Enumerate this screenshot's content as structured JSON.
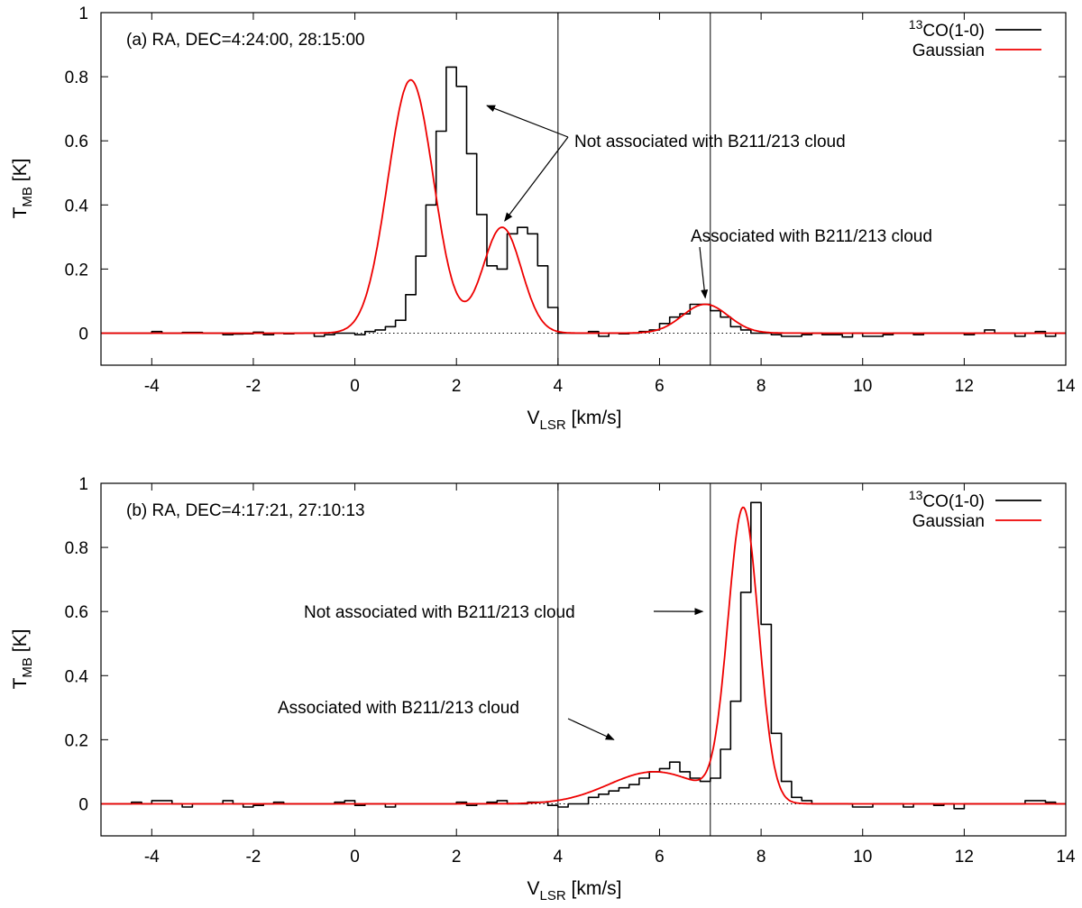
{
  "chart_data": [
    {
      "type": "line",
      "panel_label": "(a) RA, DEC=4:24:00, 28:15:00",
      "xlabel": {
        "main": "V",
        "sub": "LSR",
        "unit": "[km/s]"
      },
      "ylabel": {
        "main": "T",
        "sub": "MB",
        "unit": "[K]"
      },
      "xlim": [
        -5,
        14
      ],
      "ylim": [
        -0.1,
        1.0
      ],
      "xticks": [
        -4,
        -2,
        0,
        2,
        4,
        6,
        8,
        10,
        12,
        14
      ],
      "yticks": [
        0,
        0.2,
        0.4,
        0.6,
        0.8,
        1
      ],
      "vlines": [
        4,
        7
      ],
      "zero_line": "dotted",
      "legend": {
        "position": "top-right",
        "entries": [
          {
            "sup": "13",
            "label": "CO(1-0)",
            "color": "#000000"
          },
          {
            "label": "Gaussian",
            "color": "#ee0000"
          }
        ]
      },
      "series": [
        {
          "name": "13CO(1-0)",
          "style": "step",
          "color": "#000000",
          "bin_width": 0.2,
          "x_start": -5.0,
          "values": [
            0.0,
            0.0,
            0.0,
            0.0,
            0.0,
            0.005,
            0.0,
            0.0,
            0.002,
            0.002,
            0.0,
            0.0,
            -0.005,
            -0.003,
            -0.002,
            0.003,
            -0.005,
            0.0,
            -0.002,
            0.0,
            0.0,
            -0.01,
            -0.005,
            0.0,
            0.0,
            -0.005,
            0.005,
            0.01,
            0.02,
            0.04,
            0.12,
            0.24,
            0.4,
            0.63,
            0.83,
            0.77,
            0.56,
            0.37,
            0.21,
            0.2,
            0.31,
            0.33,
            0.31,
            0.21,
            0.08,
            0.0,
            0.0,
            0.0,
            0.005,
            -0.01,
            0.0,
            -0.002,
            0.0,
            0.005,
            0.01,
            0.03,
            0.05,
            0.06,
            0.09,
            0.09,
            0.07,
            0.05,
            0.02,
            0.01,
            0.0,
            0.0,
            -0.005,
            -0.01,
            -0.01,
            -0.005,
            0.0,
            -0.005,
            -0.005,
            -0.012,
            0.0,
            -0.01,
            -0.01,
            -0.005,
            0.0,
            0.0,
            -0.005,
            0.0,
            0.0,
            0.0,
            0.0,
            -0.005,
            0.0,
            0.01,
            0.0,
            0.0,
            -0.01,
            0.0,
            0.005,
            -0.01,
            0.0
          ]
        },
        {
          "name": "Gaussian",
          "style": "gaussian_sum",
          "color": "#ee0000",
          "components": [
            {
              "amp": 0.79,
              "center": 1.1,
              "sigma": 0.45
            },
            {
              "amp": 0.33,
              "center": 2.9,
              "sigma": 0.38
            },
            {
              "amp": 0.09,
              "center": 6.9,
              "sigma": 0.45
            }
          ]
        }
      ],
      "annotations": [
        {
          "text": "Not associated with B211/213 cloud",
          "x": 0.25,
          "y": 0.6,
          "arrow_to": [
            [
              2.6,
              0.71
            ],
            [
              2.95,
              0.35
            ]
          ]
        },
        {
          "text": "Associated with B211/213 cloud",
          "x": 6.5,
          "y": 0.3,
          "arrow_to": [
            [
              6.9,
              0.11
            ]
          ]
        }
      ]
    },
    {
      "type": "line",
      "panel_label": "(b) RA, DEC=4:17:21, 27:10:13",
      "xlabel": {
        "main": "V",
        "sub": "LSR",
        "unit": "[km/s]"
      },
      "ylabel": {
        "main": "T",
        "sub": "MB",
        "unit": "[K]"
      },
      "xlim": [
        -5,
        14
      ],
      "ylim": [
        -0.1,
        1.0
      ],
      "xticks": [
        -4,
        -2,
        0,
        2,
        4,
        6,
        8,
        10,
        12,
        14
      ],
      "yticks": [
        0,
        0.2,
        0.4,
        0.6,
        0.8,
        1
      ],
      "vlines": [
        4,
        7
      ],
      "zero_line": "dotted",
      "legend": {
        "position": "top-right",
        "entries": [
          {
            "sup": "13",
            "label": "CO(1-0)",
            "color": "#000000"
          },
          {
            "label": "Gaussian",
            "color": "#ee0000"
          }
        ]
      },
      "series": [
        {
          "name": "13CO(1-0)",
          "style": "step",
          "color": "#000000",
          "bin_width": 0.2,
          "x_start": -5.0,
          "values": [
            0.0,
            0.0,
            0.0,
            0.005,
            0.0,
            0.01,
            0.01,
            0.0,
            -0.01,
            0.0,
            0.0,
            0.0,
            0.01,
            0.0,
            -0.01,
            -0.005,
            0.0,
            0.005,
            0.0,
            0.0,
            0.0,
            0.0,
            0.0,
            0.005,
            0.01,
            -0.005,
            0.0,
            0.0,
            -0.01,
            0.0,
            0.0,
            0.0,
            0.0,
            0.0,
            0.0,
            0.005,
            -0.005,
            0.0,
            0.005,
            0.01,
            0.0,
            0.0,
            0.005,
            0.005,
            -0.005,
            -0.01,
            0.0,
            0.0,
            0.02,
            0.03,
            0.04,
            0.05,
            0.06,
            0.08,
            0.1,
            0.11,
            0.13,
            0.1,
            0.08,
            0.07,
            0.08,
            0.17,
            0.32,
            0.66,
            0.94,
            0.56,
            0.22,
            0.07,
            0.02,
            0.01,
            0.0,
            0.0,
            0.0,
            0.0,
            -0.01,
            -0.01,
            0.0,
            0.0,
            0.0,
            -0.01,
            0.0,
            0.0,
            -0.005,
            0.0,
            -0.015,
            0.0,
            0.0,
            0.0,
            0.0,
            0.0,
            0.0,
            0.01,
            0.01,
            0.005,
            0.0
          ]
        },
        {
          "name": "Gaussian",
          "style": "gaussian_sum",
          "color": "#ee0000",
          "components": [
            {
              "amp": 0.1,
              "center": 5.9,
              "sigma": 0.9
            },
            {
              "amp": 0.91,
              "center": 7.65,
              "sigma": 0.3
            }
          ]
        }
      ],
      "annotations": [
        {
          "text": "Not associated with B211/213 cloud",
          "x": 2.4,
          "y": 0.6,
          "arrow_to": [
            [
              6.85,
              0.6
            ]
          ]
        },
        {
          "text": "Associated with B211/213 cloud",
          "x": 1.8,
          "y": 0.3,
          "arrow_to": [
            [
              5.1,
              0.2
            ]
          ]
        }
      ]
    }
  ]
}
